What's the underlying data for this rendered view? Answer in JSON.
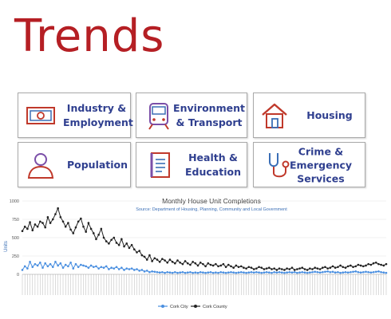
{
  "header": {
    "title": "Trends"
  },
  "tiles": [
    {
      "label_lines": [
        "Industry &",
        "Employment"
      ],
      "icon": "money-icon"
    },
    {
      "label_lines": [
        "Environment",
        "& Transport"
      ],
      "icon": "train-icon"
    },
    {
      "label_lines": [
        "Housing"
      ],
      "icon": "house-icon"
    },
    {
      "label_lines": [
        "Population"
      ],
      "icon": "person-icon"
    },
    {
      "label_lines": [
        "Health &",
        "Education"
      ],
      "icon": "document-icon"
    },
    {
      "label_lines": [
        "Crime &",
        "Emergency",
        "Services"
      ],
      "icon": "stethoscope-icon"
    }
  ],
  "colors": {
    "title": "#b51f24",
    "tile_text": "#2f3f8f",
    "icon_red": "#c0392b",
    "icon_blue": "#3b6fb6",
    "icon_purple": "#7b4fa8",
    "series_city": "#4a8fe0",
    "series_county": "#222222"
  },
  "chart_data": {
    "type": "line",
    "title": "Monthly House Unit Completions",
    "subtitle": "Source: Department of Housing, Planning, Community and Local Government",
    "ylabel": "Units",
    "ylim": [
      0,
      1000
    ],
    "yticks": [
      "0",
      "250",
      "500",
      "750",
      "1000"
    ],
    "grid": true,
    "legend_position": "bottom",
    "series": [
      {
        "name": "Cork City",
        "color": "#4a8fe0",
        "values": [
          60,
          110,
          80,
          170,
          100,
          140,
          120,
          160,
          90,
          150,
          110,
          140,
          100,
          170,
          120,
          150,
          90,
          130,
          110,
          160,
          80,
          140,
          100,
          130,
          120,
          110,
          90,
          120,
          100,
          110,
          80,
          100,
          90,
          110,
          70,
          90,
          80,
          100,
          70,
          90,
          60,
          80,
          70,
          80,
          60,
          70,
          50,
          60,
          40,
          50,
          30,
          40,
          35,
          30,
          25,
          30,
          20,
          30,
          25,
          20,
          30,
          20,
          25,
          30,
          20,
          25,
          30,
          20,
          25,
          20,
          30,
          25,
          20,
          25,
          30,
          20,
          25,
          20,
          30,
          25,
          20,
          25,
          30,
          25,
          20,
          25,
          30,
          25,
          20,
          25,
          30,
          25,
          30,
          25,
          20,
          25,
          30,
          25,
          20,
          30,
          25,
          30,
          25,
          20,
          25,
          30,
          25,
          30,
          20,
          25,
          30,
          25,
          20,
          25,
          30,
          35,
          30,
          25,
          30,
          35,
          40,
          30,
          35,
          25,
          30,
          20,
          25,
          30,
          25,
          30,
          35,
          40,
          30,
          25,
          30,
          35,
          30,
          25,
          30,
          35,
          40,
          30,
          25,
          20
        ]
      },
      {
        "name": "Cork County",
        "color": "#222222",
        "values": [
          590,
          650,
          620,
          710,
          600,
          680,
          650,
          720,
          700,
          640,
          780,
          700,
          750,
          820,
          900,
          780,
          720,
          650,
          700,
          610,
          560,
          640,
          720,
          760,
          650,
          580,
          700,
          620,
          560,
          480,
          540,
          620,
          500,
          450,
          420,
          470,
          500,
          430,
          400,
          480,
          380,
          420,
          360,
          400,
          340,
          300,
          320,
          260,
          240,
          200,
          260,
          180,
          220,
          200,
          170,
          210,
          190,
          160,
          200,
          170,
          150,
          190,
          160,
          140,
          180,
          150,
          130,
          170,
          150,
          120,
          160,
          140,
          110,
          150,
          130,
          120,
          140,
          110,
          120,
          140,
          100,
          130,
          110,
          90,
          120,
          100,
          110,
          90,
          80,
          100,
          90,
          70,
          80,
          100,
          90,
          70,
          80,
          90,
          70,
          80,
          60,
          80,
          70,
          60,
          80,
          70,
          90,
          60,
          70,
          80,
          90,
          70,
          60,
          80,
          70,
          90,
          80,
          70,
          90,
          100,
          80,
          90,
          110,
          90,
          100,
          120,
          100,
          90,
          110,
          120,
          100,
          110,
          130,
          120,
          110,
          120,
          140,
          130,
          150,
          160,
          140,
          130,
          120,
          140
        ]
      }
    ]
  }
}
